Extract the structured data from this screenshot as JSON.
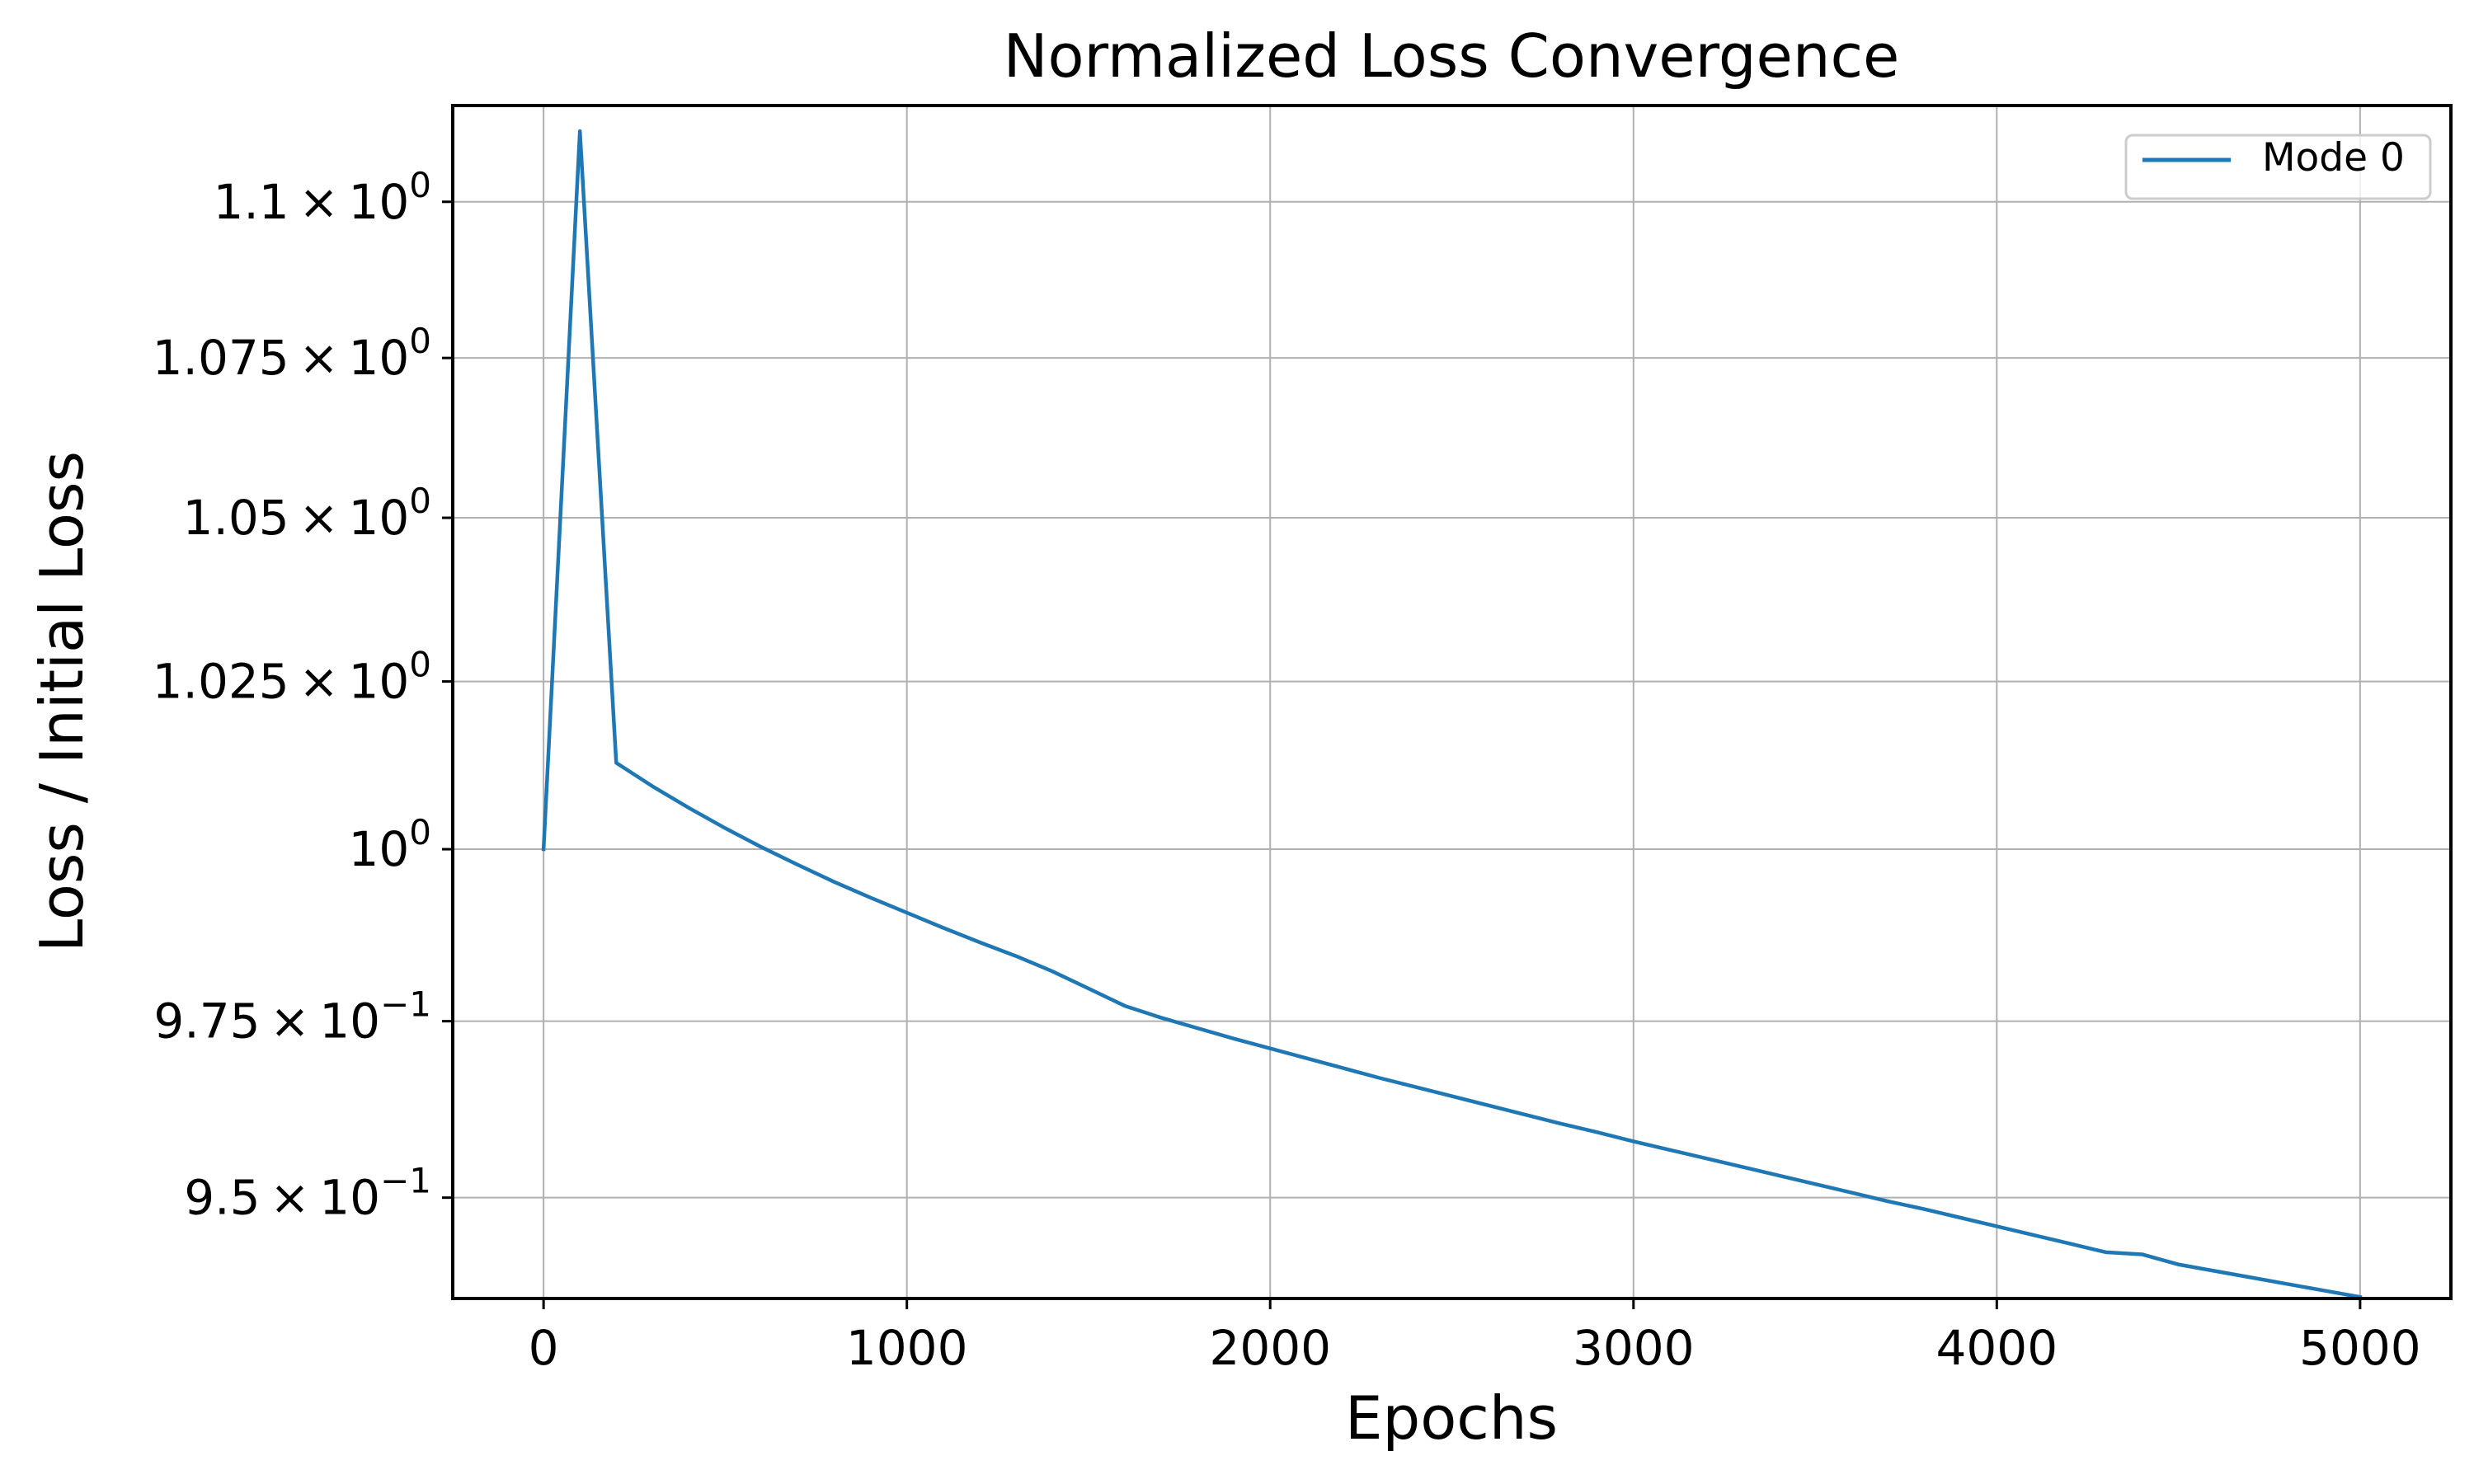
{
  "chart_data": {
    "type": "line",
    "title": "Normalized Loss Convergence",
    "xlabel": "Epochs",
    "ylabel": "Loss / Initial Loss",
    "y_scale": "log",
    "xlim": [
      -250,
      5250
    ],
    "ylim": [
      0.936,
      1.1157
    ],
    "grid": true,
    "legend_position": "top-right",
    "x_ticks": [
      {
        "value": 0,
        "label": "0"
      },
      {
        "value": 1000,
        "label": "1000"
      },
      {
        "value": 2000,
        "label": "2000"
      },
      {
        "value": 3000,
        "label": "3000"
      },
      {
        "value": 4000,
        "label": "4000"
      },
      {
        "value": 5000,
        "label": "5000"
      }
    ],
    "y_ticks": [
      {
        "value": 1.1,
        "mantissa": "1.1",
        "exponent": "0"
      },
      {
        "value": 1.075,
        "mantissa": "1.075",
        "exponent": "0"
      },
      {
        "value": 1.05,
        "mantissa": "1.05",
        "exponent": "0"
      },
      {
        "value": 1.025,
        "mantissa": "1.025",
        "exponent": "0"
      },
      {
        "value": 1.0,
        "mantissa": "10",
        "exponent": "0",
        "power_only": true
      },
      {
        "value": 0.975,
        "mantissa": "9.75",
        "exponent": "−1"
      },
      {
        "value": 0.95,
        "mantissa": "9.5",
        "exponent": "−1"
      }
    ],
    "series": [
      {
        "name": "Mode 0",
        "color": "#1f77b4",
        "x": [
          0,
          100,
          200,
          300,
          400,
          500,
          600,
          700,
          800,
          900,
          1000,
          1100,
          1200,
          1300,
          1400,
          1500,
          1600,
          1700,
          1800,
          1900,
          2000,
          2100,
          2200,
          2300,
          2400,
          2500,
          2600,
          2700,
          2800,
          2900,
          3000,
          3100,
          3200,
          3300,
          3400,
          3500,
          3600,
          3700,
          3800,
          3900,
          4000,
          4100,
          4200,
          4300,
          4400,
          4500,
          4600,
          4700,
          4800,
          4900,
          5000
        ],
        "y": [
          1.0,
          1.1115,
          1.0128,
          1.0093,
          1.0061,
          1.0031,
          1.0003,
          0.9977,
          0.9952,
          0.9929,
          0.9907,
          0.9885,
          0.9864,
          0.9844,
          0.9822,
          0.9797,
          0.9772,
          0.9755,
          0.974,
          0.9725,
          0.9711,
          0.9697,
          0.9683,
          0.9669,
          0.9656,
          0.9643,
          0.963,
          0.9617,
          0.9604,
          0.9592,
          0.9579,
          0.9567,
          0.9555,
          0.9543,
          0.9531,
          0.9519,
          0.9507,
          0.9495,
          0.9484,
          0.9472,
          0.946,
          0.9448,
          0.9436,
          0.9424,
          0.9421,
          0.9407,
          0.9398,
          0.9389,
          0.938,
          0.9371,
          0.9362
        ]
      }
    ]
  }
}
